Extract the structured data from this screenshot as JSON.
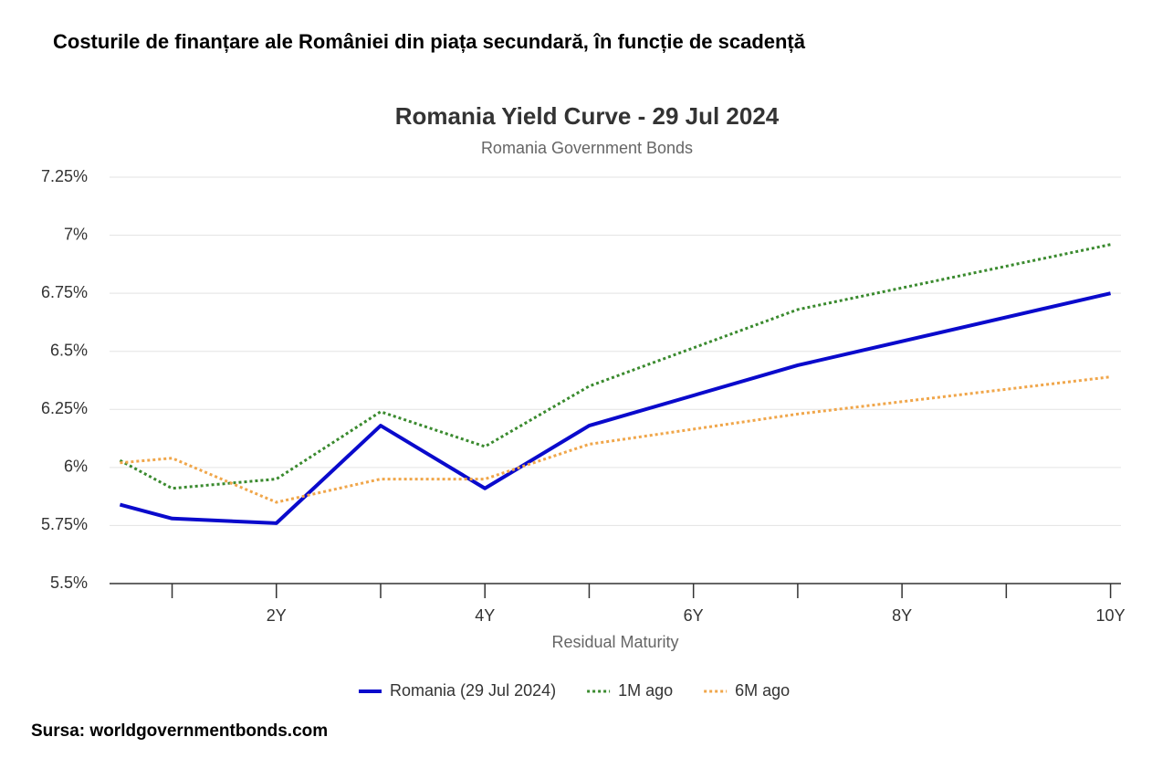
{
  "header": {
    "title": "Costurile de finanțare ale României din piața secundară, în funcție de scadență"
  },
  "chart_data": {
    "type": "line",
    "title": "Romania Yield Curve - 29 Jul 2024",
    "subtitle": "Romania Government Bonds",
    "x_label": "Residual Maturity",
    "x": [
      0.5,
      1,
      2,
      3,
      4,
      5,
      7,
      10
    ],
    "series": [
      {
        "name": "Romania (29 Jul 2024)",
        "color": "#0a0acc",
        "style": "solid",
        "values": [
          5.84,
          5.78,
          5.76,
          6.18,
          5.91,
          6.18,
          6.44,
          6.75
        ]
      },
      {
        "name": "1M ago",
        "color": "#3a8a2e",
        "style": "dotted",
        "values": [
          6.03,
          5.91,
          5.95,
          6.24,
          6.09,
          6.35,
          6.68,
          6.96
        ]
      },
      {
        "name": "6M ago",
        "color": "#f0a64a",
        "style": "dotted",
        "values": [
          6.02,
          6.04,
          5.85,
          5.95,
          5.95,
          6.1,
          6.23,
          6.39
        ]
      }
    ],
    "xlim": [
      0.4,
      10.1
    ],
    "xticks": [
      {
        "value": 1,
        "label": null
      },
      {
        "value": 2,
        "label": "2Y"
      },
      {
        "value": 3,
        "label": null
      },
      {
        "value": 4,
        "label": "4Y"
      },
      {
        "value": 5,
        "label": null
      },
      {
        "value": 6,
        "label": "6Y"
      },
      {
        "value": 7,
        "label": null
      },
      {
        "value": 8,
        "label": "8Y"
      },
      {
        "value": 9,
        "label": null
      },
      {
        "value": 10,
        "label": "10Y"
      }
    ],
    "ylim": [
      5.5,
      7.25
    ],
    "yticks": [
      {
        "value": 5.5,
        "label": "5.5%"
      },
      {
        "value": 5.75,
        "label": "5.75%"
      },
      {
        "value": 6,
        "label": "6%"
      },
      {
        "value": 6.25,
        "label": "6.25%"
      },
      {
        "value": 6.5,
        "label": "6.5%"
      },
      {
        "value": 6.75,
        "label": "6.75%"
      },
      {
        "value": 7,
        "label": "7%"
      },
      {
        "value": 7.25,
        "label": "7.25%"
      }
    ],
    "grid": true,
    "legend": "bottom"
  },
  "footer": {
    "source": "Sursa: worldgovernmentbonds.com"
  }
}
